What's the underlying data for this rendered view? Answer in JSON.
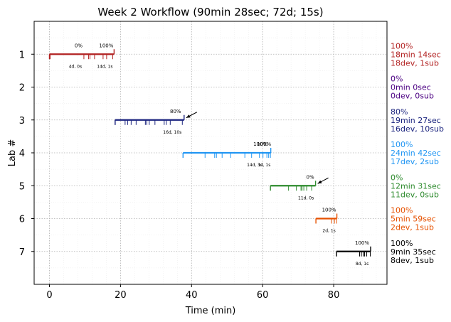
{
  "chart_data": {
    "type": "timeline",
    "title": "Week 2 Workflow (90min 28sec; 72d; 15s)",
    "xlabel": "Time (min)",
    "ylabel": "Lab #",
    "xlim": [
      -4.3,
      95
    ],
    "ylim": [
      8,
      0
    ],
    "x_ticks": [
      0,
      20,
      40,
      60,
      80
    ],
    "x_tick_labels": [
      "0",
      "20",
      "40",
      "60",
      "80"
    ],
    "y_ticks": [
      1,
      2,
      3,
      4,
      5,
      6,
      7
    ],
    "y_tick_labels": [
      "1",
      "2",
      "3",
      "4",
      "5",
      "6",
      "7"
    ],
    "grid": true,
    "labs": [
      {
        "lab": 1,
        "color": "#b22222",
        "start": 0,
        "end": 18.2,
        "events": [
          0.2,
          9.7,
          11.0,
          11.4,
          12.7,
          15.1,
          16.1,
          17.8
        ],
        "markers": [
          {
            "x": 8.2,
            "text": "0%"
          },
          {
            "x": 16.0,
            "text": "100%"
          }
        ],
        "sublabels": [
          {
            "x": 7.3,
            "text": "4d, 0s"
          },
          {
            "x": 15.6,
            "text": "14d, 1s"
          }
        ],
        "arrow": false,
        "summary": [
          "100%",
          "18min 14sec",
          "18dev, 1sub"
        ]
      },
      {
        "lab": 2,
        "color": "#4b0082",
        "start": null,
        "end": null,
        "events": [],
        "markers": [],
        "sublabels": [],
        "arrow": false,
        "summary": [
          "0%",
          "0min 0sec",
          "0dev, 0sub"
        ]
      },
      {
        "lab": 3,
        "color": "#1a237e",
        "start": 18.5,
        "end": 37.9,
        "events": [
          18.5,
          21.3,
          22.0,
          23.0,
          24.4,
          27.0,
          27.4,
          28.1,
          29.7,
          32.3,
          32.9,
          34.0,
          37.4
        ],
        "markers": [
          {
            "x": 35.5,
            "text": "80%"
          }
        ],
        "sublabels": [
          {
            "x": 34.6,
            "text": "16d, 10s"
          }
        ],
        "arrow": true,
        "summary": [
          "80%",
          "19min 27sec",
          "16dev, 10sub"
        ]
      },
      {
        "lab": 4,
        "color": "#2196f3",
        "start": 37.6,
        "end": 62.3,
        "events": [
          43.8,
          46.5,
          47.0,
          48.6,
          51.0,
          55.0,
          56.9,
          59.1,
          60.1,
          61.2,
          61.7,
          62.2
        ],
        "markers": [
          {
            "x": 59.4,
            "text": "100%"
          },
          {
            "x": 60.4,
            "text": "100%"
          }
        ],
        "sublabels": [
          {
            "x": 57.8,
            "text": "14d, 1s"
          },
          {
            "x": 60.4,
            "text": "3d, 1s"
          }
        ],
        "arrow": false,
        "summary": [
          "100%",
          "24min 42sec",
          "17dev, 2sub"
        ]
      },
      {
        "lab": 5,
        "color": "#2e8b2e",
        "start": 62.2,
        "end": 74.9,
        "events": [
          67.3,
          69.5,
          70.8,
          71.1,
          71.6,
          72.4,
          73.8
        ],
        "markers": [
          {
            "x": 73.4,
            "text": "0%"
          }
        ],
        "sublabels": [
          {
            "x": 72.2,
            "text": "11d, 0s"
          }
        ],
        "arrow": true,
        "summary": [
          "0%",
          "12min 31sec",
          "11dev, 0sub"
        ]
      },
      {
        "lab": 6,
        "color": "#e65100",
        "start": 75.0,
        "end": 80.9,
        "events": [
          79.4,
          80.2,
          80.8
        ],
        "markers": [
          {
            "x": 78.7,
            "text": "100%"
          }
        ],
        "sublabels": [
          {
            "x": 78.7,
            "text": "2d, 1s"
          }
        ],
        "arrow": false,
        "summary": [
          "100%",
          "5min 59sec",
          "2dev, 1sub"
        ]
      },
      {
        "lab": 7,
        "color": "#000000",
        "start": 80.8,
        "end": 90.4,
        "events": [
          87.3,
          87.8,
          88.3,
          88.7,
          89.3,
          90.3
        ],
        "markers": [
          {
            "x": 88.0,
            "text": "100%"
          }
        ],
        "sublabels": [
          {
            "x": 88.0,
            "text": "8d, 1s"
          }
        ],
        "arrow": false,
        "summary": [
          "100%",
          "9min 35sec",
          "8dev, 1sub"
        ]
      }
    ]
  }
}
